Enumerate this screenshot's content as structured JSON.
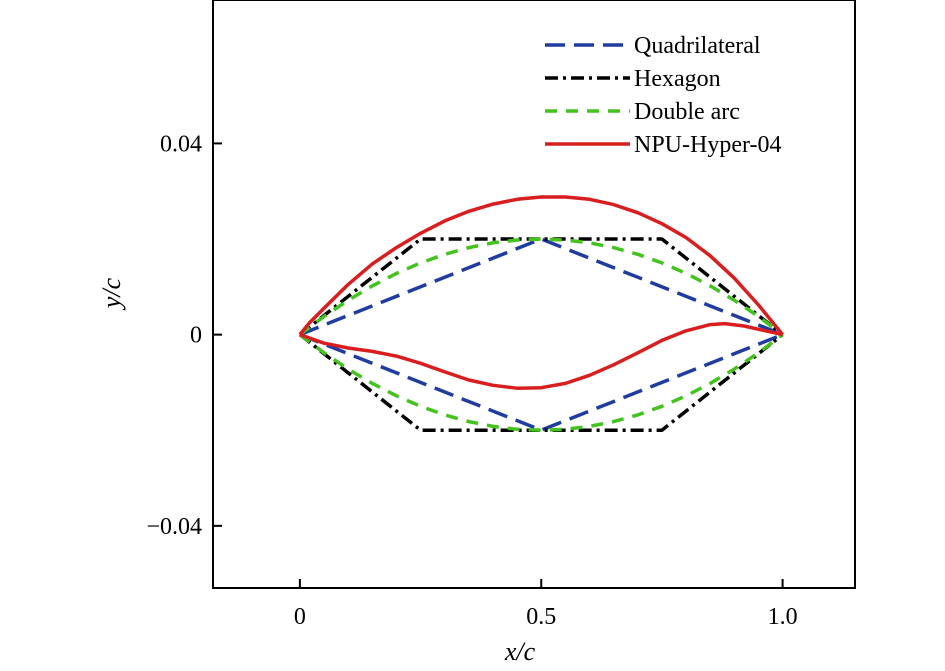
{
  "chart_data": {
    "type": "line",
    "title": "",
    "xlabel": "x/c",
    "ylabel": "y/c",
    "xlim": [
      -0.18,
      1.15
    ],
    "ylim": [
      -0.053,
      0.07
    ],
    "xticks": [
      0,
      0.5,
      1.0
    ],
    "xtick_labels": [
      "0",
      "0.5",
      "1.0"
    ],
    "yticks": [
      0.04,
      0,
      -0.04
    ],
    "ytick_labels": [
      "0.04",
      "0",
      "−0.04"
    ],
    "grid": false,
    "legend_position": "top-right",
    "series": [
      {
        "name": "Quadrilateral",
        "color": "#1f3c9e",
        "style": "dashed",
        "segments": [
          {
            "x": [
              0,
              0.5,
              1.0
            ],
            "y": [
              0,
              0.02,
              0
            ]
          },
          {
            "x": [
              0,
              0.5,
              1.0
            ],
            "y": [
              0,
              -0.02,
              0
            ]
          }
        ]
      },
      {
        "name": "Hexagon",
        "color": "#000000",
        "style": "dashdot",
        "segments": [
          {
            "x": [
              0,
              0.25,
              0.75,
              1.0
            ],
            "y": [
              0,
              0.02,
              0.02,
              0
            ]
          },
          {
            "x": [
              0,
              0.25,
              0.75,
              1.0
            ],
            "y": [
              0,
              -0.02,
              -0.02,
              0
            ]
          }
        ]
      },
      {
        "name": "Double arc",
        "color": "#44c21e",
        "style": "dashed-short",
        "segments": [
          {
            "x": [
              0,
              0.05,
              0.1,
              0.15,
              0.2,
              0.25,
              0.3,
              0.35,
              0.4,
              0.45,
              0.5,
              0.55,
              0.6,
              0.65,
              0.7,
              0.75,
              0.8,
              0.85,
              0.9,
              0.95,
              1.0
            ],
            "y": [
              0,
              0.0038,
              0.0072,
              0.0102,
              0.0128,
              0.015,
              0.0168,
              0.0182,
              0.0192,
              0.0198,
              0.02,
              0.0198,
              0.0192,
              0.0182,
              0.0168,
              0.015,
              0.0128,
              0.0102,
              0.0072,
              0.0038,
              0
            ]
          },
          {
            "x": [
              0,
              0.05,
              0.1,
              0.15,
              0.2,
              0.25,
              0.3,
              0.35,
              0.4,
              0.45,
              0.5,
              0.55,
              0.6,
              0.65,
              0.7,
              0.75,
              0.8,
              0.85,
              0.9,
              0.95,
              1.0
            ],
            "y": [
              0,
              -0.0038,
              -0.0072,
              -0.0102,
              -0.0128,
              -0.015,
              -0.0168,
              -0.0182,
              -0.0192,
              -0.0198,
              -0.02,
              -0.0198,
              -0.0192,
              -0.0182,
              -0.0168,
              -0.015,
              -0.0128,
              -0.0102,
              -0.0072,
              -0.0038,
              0
            ]
          }
        ]
      },
      {
        "name": "NPU-Hyper-04",
        "color": "#d81e1e",
        "style": "solid",
        "segments": [
          {
            "x": [
              0,
              0.02,
              0.05,
              0.1,
              0.15,
              0.2,
              0.25,
              0.3,
              0.35,
              0.4,
              0.45,
              0.5,
              0.55,
              0.6,
              0.65,
              0.7,
              0.75,
              0.8,
              0.85,
              0.9,
              0.95,
              0.98,
              1.0
            ],
            "y": [
              0,
              0.0025,
              0.0055,
              0.0105,
              0.0148,
              0.0182,
              0.0212,
              0.0238,
              0.0258,
              0.0273,
              0.0283,
              0.0288,
              0.0288,
              0.0283,
              0.0272,
              0.0255,
              0.0232,
              0.0203,
              0.0165,
              0.0118,
              0.0062,
              0.0025,
              0
            ]
          },
          {
            "x": [
              0,
              0.05,
              0.1,
              0.15,
              0.2,
              0.25,
              0.3,
              0.35,
              0.4,
              0.45,
              0.5,
              0.55,
              0.6,
              0.65,
              0.7,
              0.75,
              0.8,
              0.85,
              0.88,
              0.92,
              0.96,
              1.0
            ],
            "y": [
              0,
              -0.0018,
              -0.0028,
              -0.0035,
              -0.0045,
              -0.006,
              -0.0078,
              -0.0095,
              -0.0106,
              -0.0112,
              -0.0111,
              -0.0102,
              -0.0085,
              -0.0063,
              -0.0038,
              -0.0012,
              0.0008,
              0.0021,
              0.0023,
              0.0018,
              0.0009,
              0
            ]
          }
        ]
      }
    ]
  }
}
